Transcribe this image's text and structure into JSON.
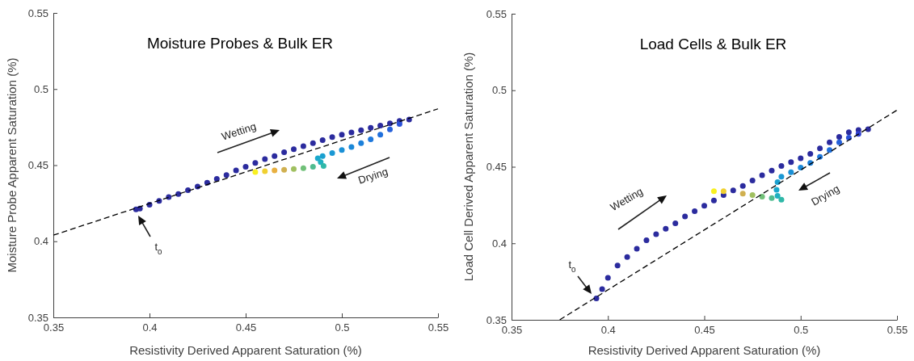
{
  "chart_data": [
    {
      "type": "scatter",
      "title": "Moisture Probes & Bulk ER",
      "xlabel": "Resistivity Derived Apparent Saturation (%)",
      "ylabel": "Moisture Probe Apparent Saturation (%)",
      "xlim": [
        0.35,
        0.55
      ],
      "ylim": [
        0.35,
        0.55
      ],
      "xticks": [
        0.35,
        0.4,
        0.45,
        0.5,
        0.55
      ],
      "yticks": [
        0.35,
        0.4,
        0.45,
        0.5,
        0.55
      ],
      "marker": "circle",
      "annotations": [
        "Wetting",
        "Drying",
        "t$_{0}$"
      ],
      "series": [
        {
          "color": "#2b2b9e",
          "x": [
            0.393,
            0.395,
            0.4,
            0.405,
            0.41,
            0.415,
            0.42,
            0.425,
            0.43,
            0.435,
            0.44,
            0.445,
            0.45,
            0.455,
            0.46,
            0.465,
            0.47,
            0.475,
            0.48,
            0.485,
            0.49,
            0.495,
            0.5,
            0.505,
            0.51,
            0.515,
            0.52,
            0.525,
            0.53,
            0.535
          ],
          "values": [
            0.421,
            0.4215,
            0.424,
            0.4265,
            0.429,
            0.431,
            0.4335,
            0.436,
            0.4385,
            0.441,
            0.4435,
            0.4465,
            0.449,
            0.4515,
            0.454,
            0.456,
            0.4585,
            0.4605,
            0.4625,
            0.4645,
            0.4665,
            0.4685,
            0.47,
            0.4715,
            0.473,
            0.4745,
            0.476,
            0.4775,
            0.479,
            0.48
          ]
        },
        {
          "colors": [
            "#2a50d8",
            "#2560da",
            "#2070dc",
            "#1e78dc",
            "#1c80da",
            "#1a88d8",
            "#1a90d6",
            "#1a98d4",
            "#1aa0d0",
            "#1aa8cc",
            "#20b0c0",
            "#30b8a8",
            "#50bc90",
            "#70c078",
            "#a0c060",
            "#d0b050",
            "#e8b040",
            "#f0d030",
            "#f8f020"
          ],
          "x": [
            0.53,
            0.525,
            0.52,
            0.515,
            0.51,
            0.505,
            0.5,
            0.495,
            0.49,
            0.4875,
            0.489,
            0.4905,
            0.485,
            0.48,
            0.475,
            0.47,
            0.465,
            0.46,
            0.455
          ],
          "values": [
            0.477,
            0.4735,
            0.47,
            0.467,
            0.4645,
            0.462,
            0.46,
            0.458,
            0.456,
            0.4545,
            0.452,
            0.4495,
            0.449,
            0.448,
            0.4475,
            0.447,
            0.4465,
            0.446,
            0.4455
          ]
        },
        {
          "type": "line",
          "color": "#000000",
          "line_style": "dashed",
          "marker": "none",
          "x": [
            0.35,
            0.55
          ],
          "values": [
            0.404,
            0.487
          ]
        }
      ]
    },
    {
      "type": "scatter",
      "title": "Load Cells & Bulk ER",
      "xlabel": "Resistivity Derived Apparent Saturation (%)",
      "ylabel": "Load Cell Derived Apparent Saturation (%)",
      "xlim": [
        0.35,
        0.55
      ],
      "ylim": [
        0.35,
        0.55
      ],
      "xticks": [
        0.35,
        0.4,
        0.45,
        0.5,
        0.55
      ],
      "yticks": [
        0.35,
        0.4,
        0.45,
        0.5,
        0.55
      ],
      "marker": "circle",
      "annotations": [
        "Wetting",
        "Drying",
        "t$_{0}$"
      ],
      "series": [
        {
          "color": "#2b2b9e",
          "x": [
            0.394,
            0.397,
            0.4,
            0.405,
            0.41,
            0.415,
            0.42,
            0.425,
            0.43,
            0.435,
            0.44,
            0.445,
            0.45,
            0.455,
            0.46,
            0.465,
            0.47,
            0.475,
            0.48,
            0.485,
            0.49,
            0.495,
            0.5,
            0.505,
            0.51,
            0.515,
            0.52,
            0.525,
            0.53,
            0.535
          ],
          "values": [
            0.364,
            0.37,
            0.3775,
            0.3855,
            0.391,
            0.3965,
            0.402,
            0.406,
            0.4095,
            0.413,
            0.4175,
            0.421,
            0.4245,
            0.428,
            0.4315,
            0.4345,
            0.4375,
            0.441,
            0.4445,
            0.4475,
            0.4505,
            0.453,
            0.4555,
            0.4585,
            0.462,
            0.466,
            0.4695,
            0.4725,
            0.474,
            0.4745
          ]
        },
        {
          "colors": [
            "#3040d0",
            "#2a50d8",
            "#2560da",
            "#2070dc",
            "#1e78dc",
            "#1c80da",
            "#1a88d8",
            "#1a90d6",
            "#1a98d4",
            "#1aa0d0",
            "#1aa8cc",
            "#20b0c0",
            "#30b8a8",
            "#50bc90",
            "#70c078",
            "#a0c060",
            "#d0b050",
            "#f0d030",
            "#f8f020"
          ],
          "x": [
            0.53,
            0.525,
            0.52,
            0.515,
            0.51,
            0.505,
            0.5,
            0.495,
            0.49,
            0.488,
            0.4875,
            0.488,
            0.49,
            0.485,
            0.48,
            0.475,
            0.47,
            0.46,
            0.455
          ],
          "values": [
            0.4715,
            0.469,
            0.466,
            0.461,
            0.4565,
            0.4525,
            0.4495,
            0.4465,
            0.4435,
            0.44,
            0.435,
            0.431,
            0.4285,
            0.4295,
            0.4305,
            0.4315,
            0.4325,
            0.434,
            0.434
          ]
        },
        {
          "type": "line",
          "color": "#000000",
          "line_style": "dashed",
          "marker": "none",
          "x": [
            0.375,
            0.55
          ],
          "values": [
            0.35,
            0.487
          ]
        }
      ]
    }
  ]
}
